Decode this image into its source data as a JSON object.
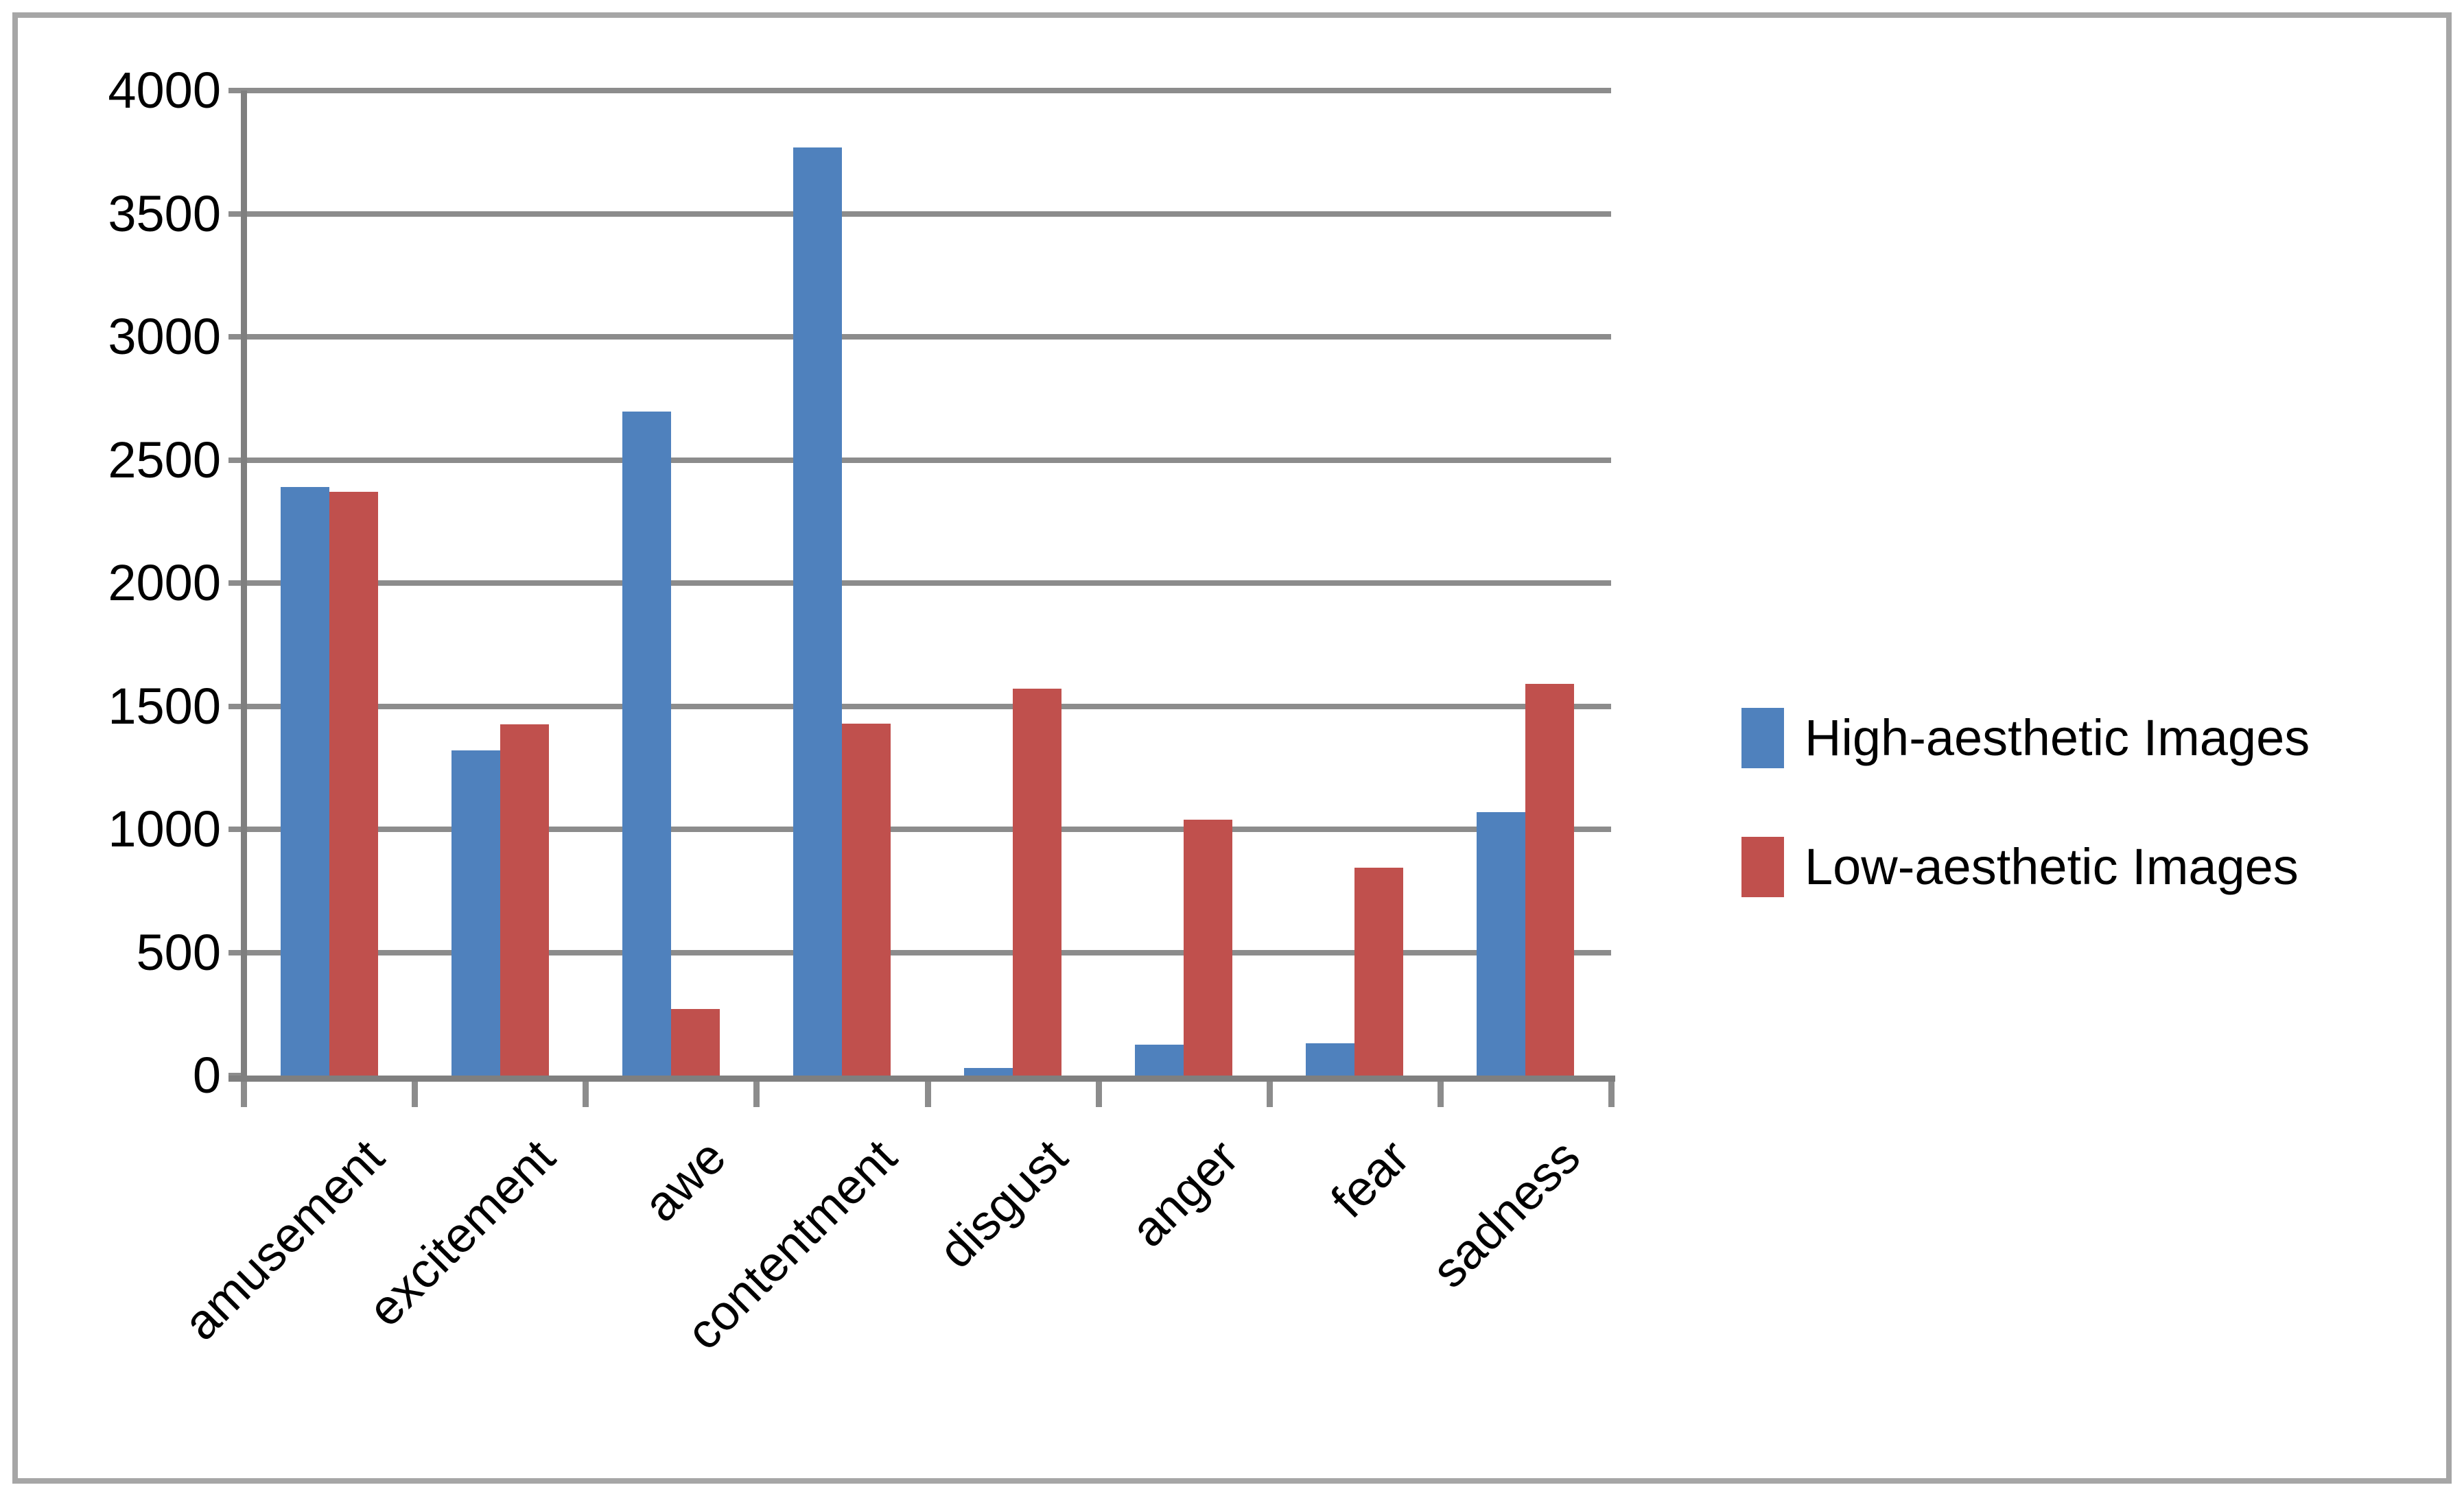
{
  "chart_data": {
    "type": "bar",
    "title": "",
    "categories": [
      "amusement",
      "excitement",
      "awe",
      "contentment",
      "disgust",
      "anger",
      "fear",
      "sadness"
    ],
    "series": [
      {
        "name": "High-aesthetic Images",
        "color": "#4F81BD",
        "values": [
          2390,
          1320,
          2695,
          3770,
          30,
          125,
          130,
          1070
        ]
      },
      {
        "name": "Low-aesthetic Images",
        "color": "#C0504D",
        "values": [
          2370,
          1425,
          270,
          1430,
          1570,
          1040,
          845,
          1590
        ]
      }
    ],
    "xlabel": "",
    "ylabel": "",
    "ylim": [
      0,
      4000
    ],
    "yticks": [
      0,
      500,
      1000,
      1500,
      2000,
      2500,
      3000,
      3500,
      4000
    ],
    "grid": "horizontal",
    "legend_position": "right"
  },
  "colors": {
    "gridline": "#8c8c8c",
    "axis": "#7f7f7f",
    "frame_border": "#a6a6a6",
    "text": "#000000",
    "background": "#ffffff"
  }
}
